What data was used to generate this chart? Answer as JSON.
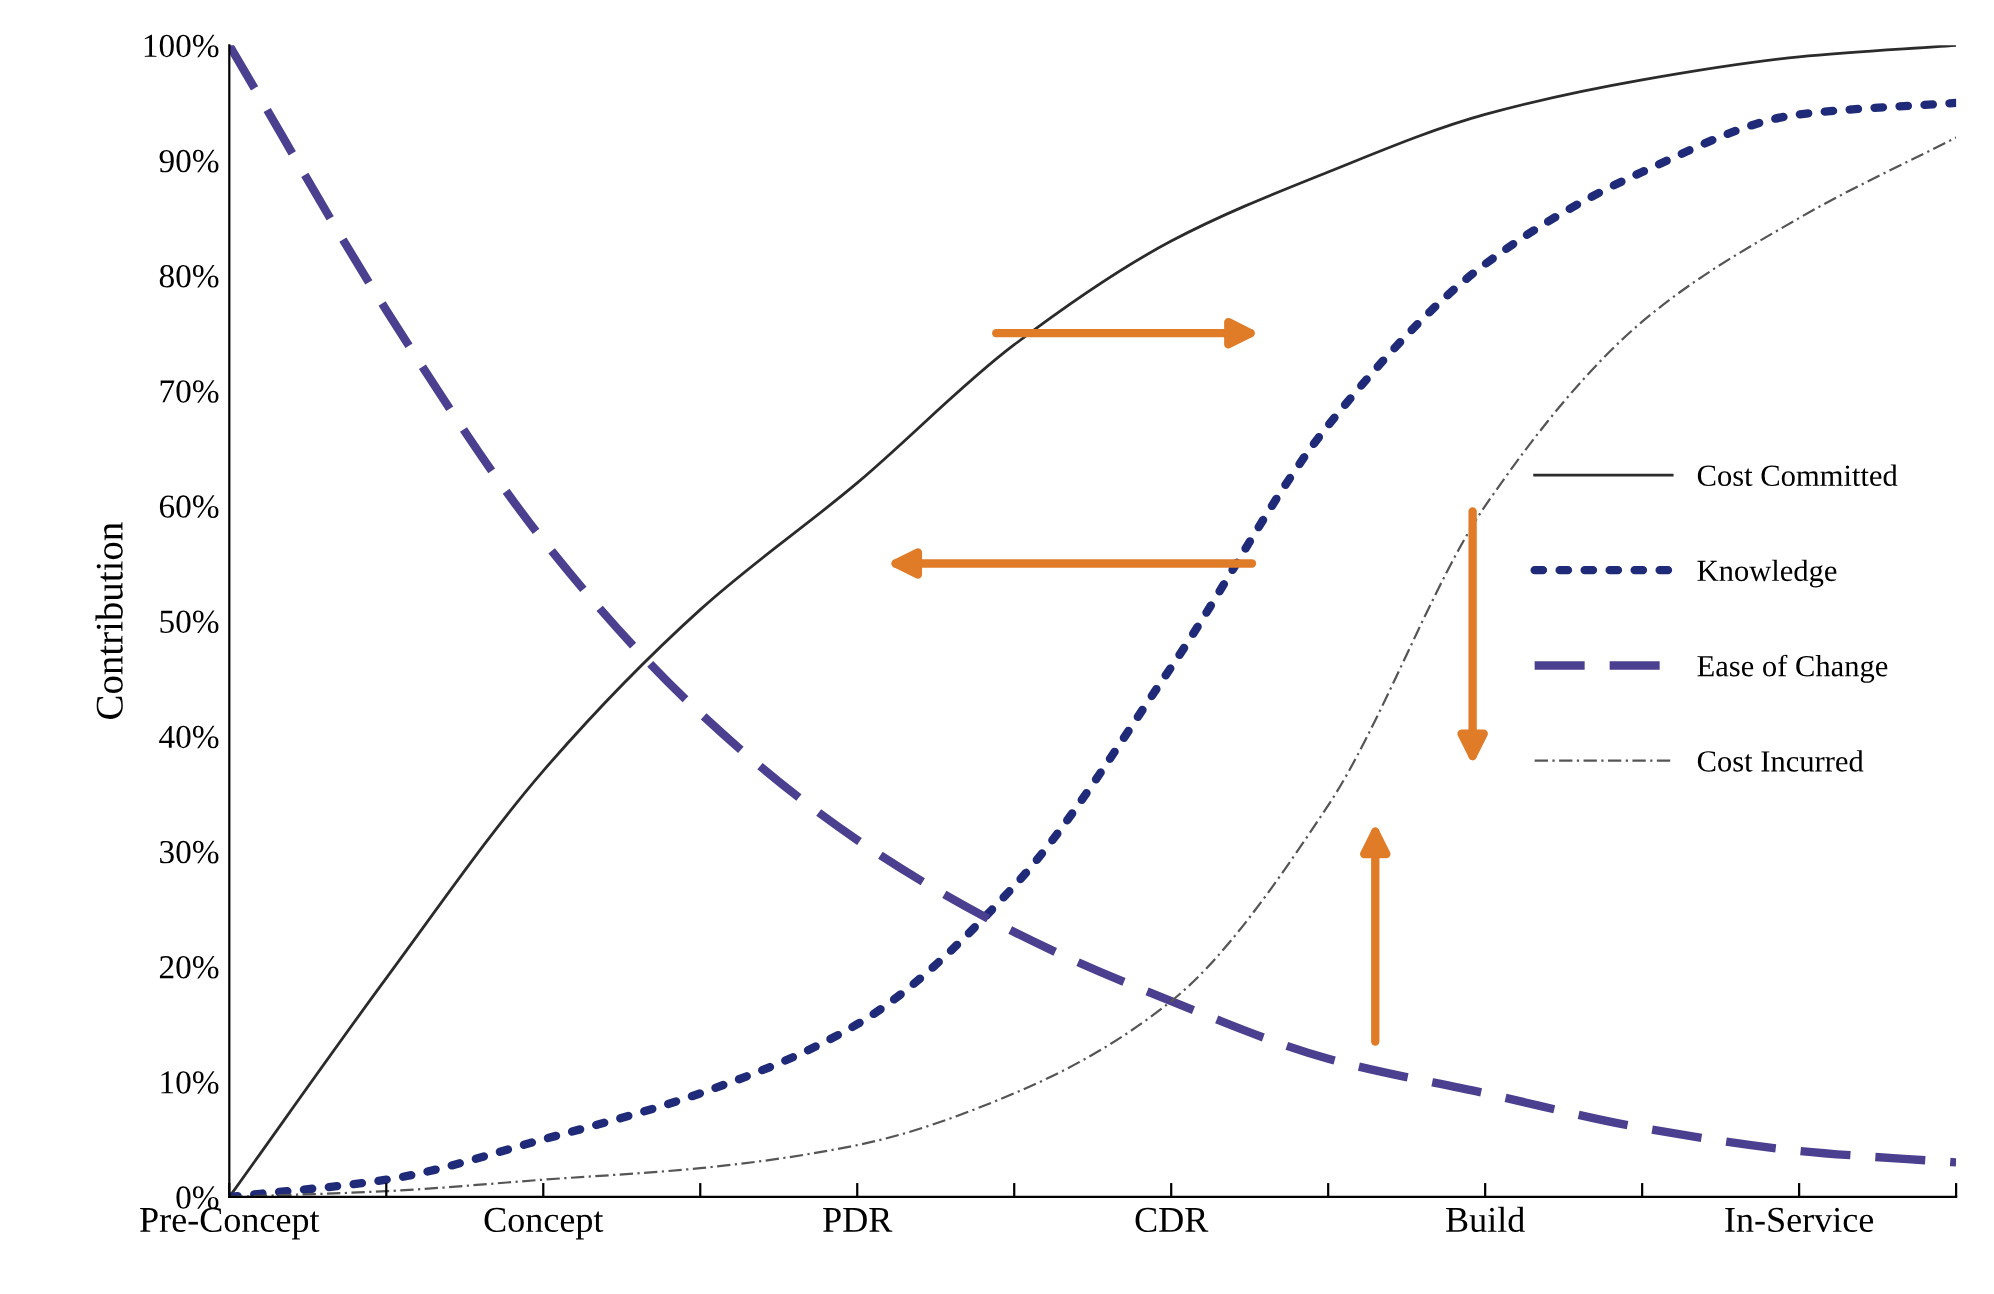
{
  "chart_data": {
    "type": "line",
    "ylabel": "Contribution",
    "categories": [
      "Pre-Concept",
      null,
      "Concept",
      null,
      "PDR",
      null,
      "CDR",
      null,
      "Build",
      null,
      "In-Service",
      null
    ],
    "ylim": [
      0,
      100
    ],
    "yticks": [
      {
        "value": 0,
        "label": "0%"
      },
      {
        "value": 10,
        "label": "10%"
      },
      {
        "value": 20,
        "label": "20%"
      },
      {
        "value": 30,
        "label": "30%"
      },
      {
        "value": 40,
        "label": "40%"
      },
      {
        "value": 50,
        "label": "50%"
      },
      {
        "value": 60,
        "label": "60%"
      },
      {
        "value": 70,
        "label": "70%"
      },
      {
        "value": 80,
        "label": "80%"
      },
      {
        "value": 90,
        "label": "90%"
      },
      {
        "value": 100,
        "label": "100%"
      }
    ],
    "series": [
      {
        "name": "Cost Committed",
        "color": "#2b2b2b",
        "line_style": "solid",
        "values": [
          0,
          19,
          37,
          51,
          62,
          74,
          83,
          89,
          94,
          97,
          99,
          100
        ]
      },
      {
        "name": "Knowledge",
        "color": "#1f2a78",
        "line_style": "dotted",
        "values": [
          0,
          1.5,
          5,
          9,
          15,
          27,
          46,
          67,
          81,
          89,
          94,
          95
        ]
      },
      {
        "name": "Ease of Change",
        "color": "#4b3f8f",
        "line_style": "dashed",
        "values": [
          100,
          77,
          57,
          42,
          31,
          23,
          17,
          12,
          9,
          6,
          4,
          3
        ]
      },
      {
        "name": "Cost Incurred",
        "color": "#555555",
        "line_style": "dashdot",
        "values": [
          0,
          0.5,
          1.5,
          2.5,
          4.5,
          9,
          17,
          34,
          60,
          76,
          85,
          92
        ]
      }
    ],
    "legend": "right",
    "marker": "none",
    "grid": false
  }
}
